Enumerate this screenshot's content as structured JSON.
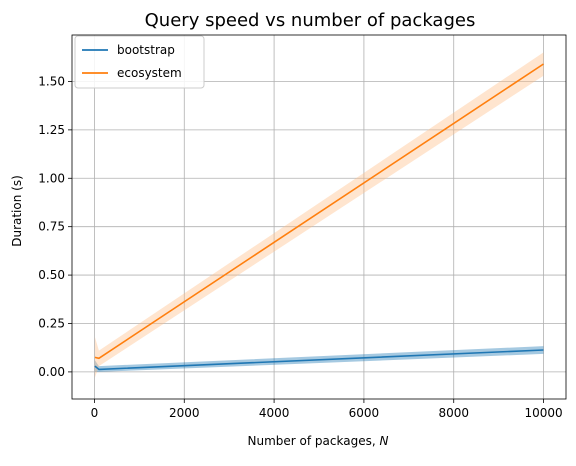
{
  "chart_data": {
    "type": "line",
    "title": "Query speed vs number of packages",
    "xlabel_text": "Number of packages, ",
    "xlabel_var": "N",
    "ylabel": "Duration (s)",
    "xlim": [
      -500,
      10500
    ],
    "ylim": [
      -0.14,
      1.74
    ],
    "xticks": [
      0,
      2000,
      4000,
      6000,
      8000,
      10000
    ],
    "xtick_labels": [
      "0",
      "2000",
      "4000",
      "6000",
      "8000",
      "10000"
    ],
    "yticks": [
      0.0,
      0.25,
      0.5,
      0.75,
      1.0,
      1.25,
      1.5
    ],
    "ytick_labels": [
      "0.00",
      "0.25",
      "0.50",
      "0.75",
      "1.00",
      "1.25",
      "1.50"
    ],
    "grid": true,
    "legend_position": "top-left",
    "series": [
      {
        "name": "bootstrap",
        "color": "#1f77b4",
        "band_color": "#1f77b4",
        "x": [
          10,
          100,
          10000
        ],
        "y": [
          0.03,
          0.013,
          0.113
        ],
        "band_lower": [
          0.0,
          0.0,
          0.093
        ],
        "band_upper": [
          0.06,
          0.03,
          0.133
        ]
      },
      {
        "name": "ecosystem",
        "color": "#ff7f0e",
        "band_color": "#ffbf86",
        "x": [
          10,
          100,
          10000
        ],
        "y": [
          0.075,
          0.07,
          1.59
        ],
        "band_lower": [
          -0.03,
          0.03,
          1.53
        ],
        "band_upper": [
          0.18,
          0.11,
          1.65
        ]
      }
    ]
  }
}
